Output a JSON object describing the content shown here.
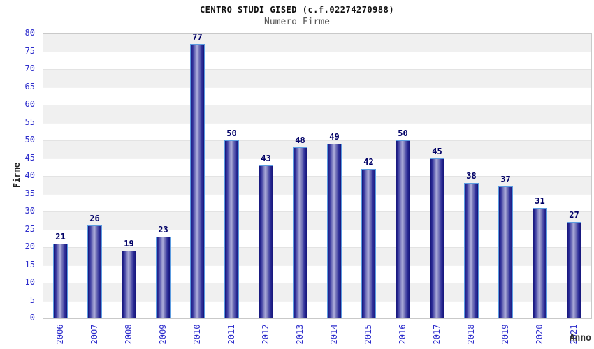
{
  "chart_data": {
    "type": "bar",
    "title": "CENTRO STUDI GISED (c.f.02274270988)",
    "subtitle": "Numero Firme",
    "xlabel": "Anno",
    "ylabel": "Firme",
    "categories": [
      "2006",
      "2007",
      "2008",
      "2009",
      "2010",
      "2011",
      "2012",
      "2013",
      "2014",
      "2015",
      "2016",
      "2017",
      "2018",
      "2019",
      "2020",
      "2021"
    ],
    "values": [
      21,
      26,
      19,
      23,
      77,
      50,
      43,
      48,
      49,
      42,
      50,
      45,
      38,
      37,
      31,
      27
    ],
    "ylim": [
      0,
      80
    ],
    "ytick_step": 5,
    "ytick_labels": [
      "0",
      "5",
      "10",
      "15",
      "20",
      "25",
      "30",
      "35",
      "40",
      "45",
      "50",
      "55",
      "60",
      "65",
      "70",
      "75",
      "80"
    ],
    "grid": "horizontal alternating bands every 5 units",
    "legend": "none",
    "value_labels_shown": true,
    "colors": {
      "bar_dark": "#15157a",
      "bar_light": "#aeaedd",
      "bar_border": "#5c9ce0",
      "tick_label": "#2d2dcc",
      "value_label": "#000066",
      "title": "#111111",
      "subtitle": "#555555",
      "axis_title": "#333333",
      "band_gray": "#f0f0f0",
      "band_white": "#ffffff",
      "plot_border": "#c9c9c9",
      "background": "#ffffff"
    }
  }
}
